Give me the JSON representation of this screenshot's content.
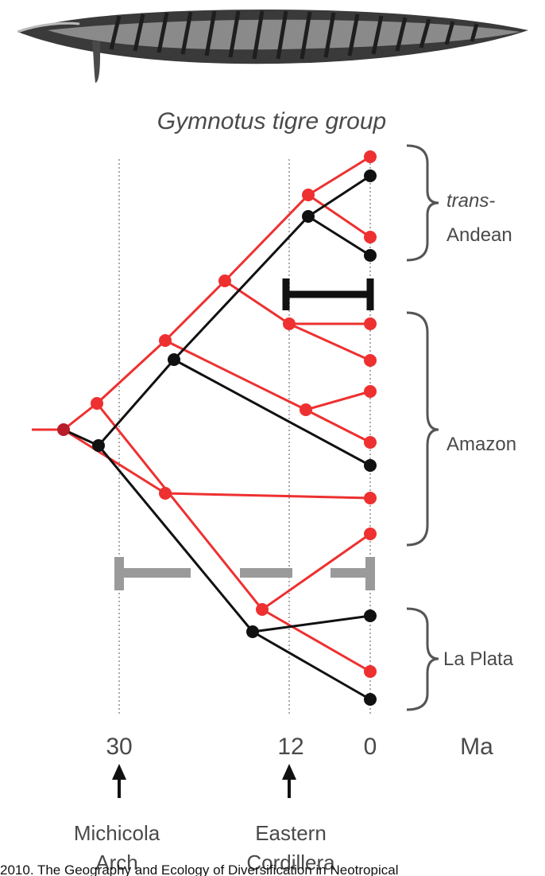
{
  "title": "Gymnotus tigre group",
  "axis": {
    "unit_label": "Ma",
    "ticks": [
      30,
      12,
      0
    ]
  },
  "events": [
    {
      "age": 30,
      "label_line1": "Michicola",
      "label_line2": "Arch"
    },
    {
      "age": 12,
      "label_line1": "Eastern",
      "label_line2": "Cordillera"
    }
  ],
  "clades": [
    {
      "line1": "trans-",
      "line2": "Andean"
    },
    {
      "line1": "Amazon",
      "line2": ""
    },
    {
      "line1": "La Plata",
      "line2": ""
    }
  ],
  "caption": "2010. The Geography and Ecology of Diversification in Neotropical",
  "colors": {
    "red": "#ee3030",
    "black": "#111111",
    "gray": "#9a9a9a",
    "text": "#4a4a4a"
  },
  "icons": {
    "fish": "fish-illustration",
    "arrow": "up-arrow-icon"
  }
}
